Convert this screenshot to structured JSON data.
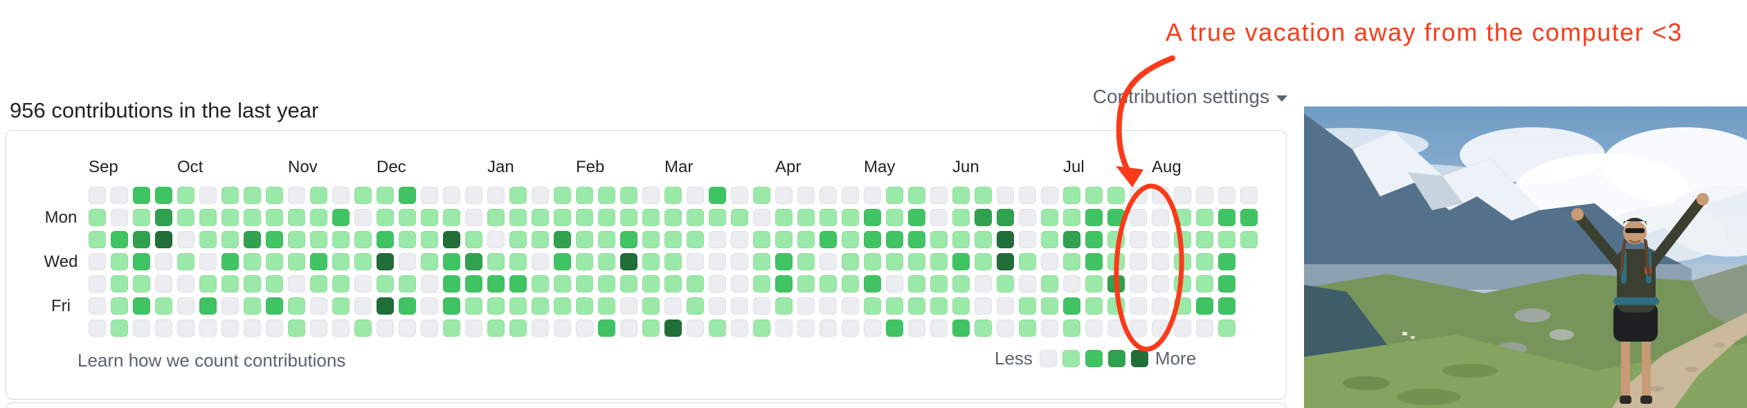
{
  "annotation": {
    "text": "A true vacation away from the computer <3",
    "color": "#fb3a1a"
  },
  "header": {
    "title": "956 contributions in the last year",
    "settings_label": "Contribution settings"
  },
  "footer": {
    "learn_link": "Learn how we count contributions",
    "less_label": "Less",
    "more_label": "More"
  },
  "colors": {
    "accent_red": "#fb3a1a",
    "card_border": "#d1d9e0",
    "muted_text": "#59636e",
    "default_text": "#1f2328"
  },
  "photo": {
    "description": "Hiker with raised arms on a rocky alpine trail, snow-capped mountains and valley behind"
  },
  "chart_data": {
    "type": "heatmap",
    "title": "956 contributions in the last year",
    "total_contributions": 956,
    "period": "in the last year",
    "legend": {
      "less": "Less",
      "more": "More",
      "position": "bottom-right"
    },
    "levels_palette": [
      "#ebedf0",
      "#9be9a8",
      "#40c463",
      "#30a14e",
      "#216e39"
    ],
    "legend_levels": [
      0,
      1,
      2,
      3,
      4
    ],
    "day_labels": [
      {
        "label": "Mon",
        "row": 1
      },
      {
        "label": "Wed",
        "row": 3
      },
      {
        "label": "Fri",
        "row": 5
      }
    ],
    "months": [
      {
        "label": "Sep",
        "week": 0
      },
      {
        "label": "Oct",
        "week": 4
      },
      {
        "label": "Nov",
        "week": 9
      },
      {
        "label": "Dec",
        "week": 13
      },
      {
        "label": "Jan",
        "week": 18
      },
      {
        "label": "Feb",
        "week": 22
      },
      {
        "label": "Mar",
        "week": 26
      },
      {
        "label": "Apr",
        "week": 31
      },
      {
        "label": "May",
        "week": 35
      },
      {
        "label": "Jun",
        "week": 39
      },
      {
        "label": "Jul",
        "week": 44
      },
      {
        "label": "Aug",
        "week": 48
      }
    ],
    "vacation_weeks_circled": [
      47,
      48
    ],
    "weeks": [
      [
        0,
        1,
        1,
        0,
        0,
        0,
        0
      ],
      [
        0,
        0,
        2,
        1,
        1,
        1,
        1
      ],
      [
        2,
        1,
        3,
        2,
        1,
        2,
        0
      ],
      [
        2,
        3,
        4,
        0,
        0,
        1,
        0
      ],
      [
        1,
        1,
        0,
        1,
        0,
        0,
        0
      ],
      [
        0,
        1,
        1,
        0,
        1,
        2,
        0
      ],
      [
        1,
        1,
        1,
        2,
        1,
        0,
        0
      ],
      [
        1,
        1,
        3,
        1,
        1,
        1,
        0
      ],
      [
        1,
        1,
        2,
        1,
        1,
        2,
        0
      ],
      [
        0,
        1,
        1,
        1,
        0,
        1,
        1
      ],
      [
        1,
        1,
        1,
        2,
        1,
        0,
        0
      ],
      [
        0,
        2,
        1,
        1,
        1,
        1,
        0
      ],
      [
        1,
        0,
        1,
        1,
        0,
        0,
        1
      ],
      [
        1,
        1,
        2,
        4,
        1,
        4,
        0
      ],
      [
        2,
        1,
        1,
        0,
        1,
        2,
        0
      ],
      [
        0,
        1,
        1,
        1,
        0,
        0,
        0
      ],
      [
        0,
        1,
        4,
        2,
        2,
        2,
        1
      ],
      [
        0,
        0,
        1,
        3,
        2,
        1,
        0
      ],
      [
        0,
        1,
        0,
        1,
        2,
        1,
        1
      ],
      [
        1,
        1,
        1,
        1,
        2,
        1,
        1
      ],
      [
        0,
        1,
        1,
        0,
        1,
        1,
        0
      ],
      [
        1,
        1,
        3,
        2,
        1,
        1,
        0
      ],
      [
        1,
        1,
        1,
        1,
        1,
        1,
        0
      ],
      [
        1,
        1,
        1,
        1,
        1,
        1,
        2
      ],
      [
        1,
        1,
        2,
        4,
        1,
        0,
        0
      ],
      [
        0,
        1,
        1,
        1,
        1,
        1,
        1
      ],
      [
        1,
        1,
        1,
        1,
        1,
        0,
        4
      ],
      [
        0,
        1,
        1,
        0,
        1,
        1,
        0
      ],
      [
        2,
        1,
        0,
        0,
        0,
        0,
        1
      ],
      [
        0,
        1,
        0,
        0,
        0,
        0,
        0
      ],
      [
        1,
        0,
        1,
        1,
        1,
        0,
        1
      ],
      [
        0,
        1,
        1,
        2,
        2,
        1,
        0
      ],
      [
        0,
        1,
        1,
        1,
        1,
        0,
        0
      ],
      [
        0,
        1,
        2,
        0,
        1,
        0,
        0
      ],
      [
        0,
        1,
        1,
        1,
        1,
        0,
        0
      ],
      [
        0,
        2,
        2,
        1,
        2,
        1,
        0
      ],
      [
        1,
        1,
        2,
        1,
        0,
        1,
        2
      ],
      [
        1,
        2,
        2,
        1,
        1,
        1,
        0
      ],
      [
        0,
        0,
        1,
        1,
        1,
        1,
        0
      ],
      [
        1,
        1,
        1,
        2,
        1,
        1,
        2
      ],
      [
        1,
        3,
        1,
        1,
        0,
        0,
        1
      ],
      [
        0,
        3,
        4,
        4,
        1,
        0,
        0
      ],
      [
        0,
        0,
        0,
        1,
        0,
        1,
        1
      ],
      [
        0,
        1,
        1,
        0,
        1,
        1,
        0
      ],
      [
        1,
        1,
        3,
        1,
        0,
        2,
        1
      ],
      [
        1,
        2,
        2,
        2,
        1,
        1,
        0
      ],
      [
        1,
        2,
        1,
        1,
        3,
        1,
        0
      ],
      [
        0,
        0,
        0,
        0,
        0,
        0,
        0
      ],
      [
        0,
        0,
        0,
        0,
        0,
        0,
        0
      ],
      [
        0,
        1,
        1,
        1,
        1,
        1,
        0
      ],
      [
        0,
        1,
        1,
        1,
        1,
        2,
        0
      ],
      [
        0,
        2,
        1,
        2,
        2,
        2,
        1
      ],
      [
        0,
        2,
        1
      ]
    ]
  }
}
